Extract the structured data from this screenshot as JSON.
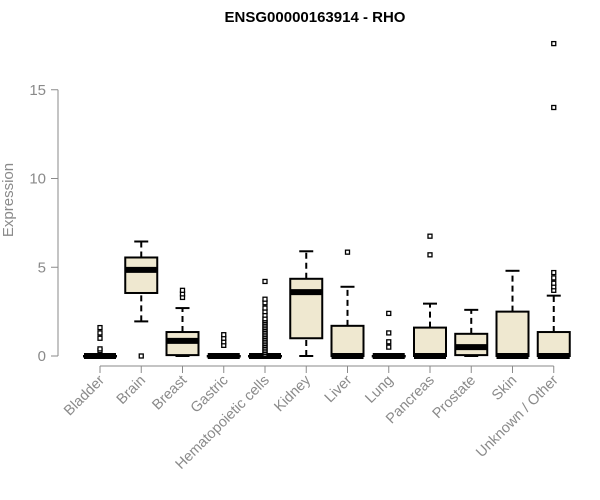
{
  "chart_data": {
    "type": "boxplot",
    "title": "ENSG00000163914 - RHO",
    "xlabel": "",
    "ylabel": "Expression",
    "ylim": [
      -0.5,
      17.8
    ],
    "yticks": [
      0,
      5,
      10,
      15
    ],
    "box_fill": "#efe8d0",
    "grid": false,
    "categories": [
      "Bladder",
      "Brain",
      "Breast",
      "Gastric",
      "Hematopoietic cells",
      "Kidney",
      "Liver",
      "Lung",
      "Pancreas",
      "Prostate",
      "Skin",
      "Unknown / Other"
    ],
    "boxes": [
      {
        "category": "Bladder",
        "min": 0,
        "q1": 0,
        "median": 0,
        "q3": 0,
        "max": 0,
        "outliers": [
          0.3,
          0.4,
          1.0,
          1.3,
          1.6
        ]
      },
      {
        "category": "Brain",
        "min": 1.95,
        "q1": 3.55,
        "median": 4.85,
        "q3": 5.55,
        "max": 6.45,
        "outliers": [
          0
        ]
      },
      {
        "category": "Breast",
        "min": 0,
        "q1": 0.05,
        "median": 0.85,
        "q3": 1.35,
        "max": 2.7,
        "outliers": [
          3.3,
          3.5,
          3.7
        ]
      },
      {
        "category": "Gastric",
        "min": 0,
        "q1": 0,
        "median": 0,
        "q3": 0,
        "max": 0,
        "outliers": [
          0.6,
          0.8,
          1.0,
          1.2
        ]
      },
      {
        "category": "Hematopoietic cells",
        "min": 0,
        "q1": 0,
        "median": 0,
        "q3": 0,
        "max": 0,
        "outliers": [
          0.1,
          0.2,
          0.3,
          0.4,
          0.5,
          0.6,
          0.7,
          0.8,
          0.9,
          1.0,
          1.1,
          1.2,
          1.3,
          1.4,
          1.5,
          1.6,
          1.7,
          1.8,
          1.9,
          2.0,
          2.1,
          2.3,
          2.5,
          2.7,
          3.0,
          3.2,
          4.2
        ]
      },
      {
        "category": "Kidney",
        "min": 0,
        "q1": 1.0,
        "median": 3.6,
        "q3": 4.35,
        "max": 5.9,
        "outliers": []
      },
      {
        "category": "Liver",
        "min": 0,
        "q1": 0,
        "median": 0,
        "q3": 1.7,
        "max": 3.9,
        "outliers": [
          5.85
        ]
      },
      {
        "category": "Lung",
        "min": 0,
        "q1": 0,
        "median": 0,
        "q3": 0,
        "max": 0,
        "outliers": [
          0.5,
          0.8,
          1.3,
          2.4
        ]
      },
      {
        "category": "Pancreas",
        "min": 0,
        "q1": 0,
        "median": 0,
        "q3": 1.6,
        "max": 2.95,
        "outliers": [
          5.7,
          6.75
        ]
      },
      {
        "category": "Prostate",
        "min": 0,
        "q1": 0.05,
        "median": 0.5,
        "q3": 1.25,
        "max": 2.6,
        "outliers": []
      },
      {
        "category": "Skin",
        "min": 0,
        "q1": 0,
        "median": 0,
        "q3": 2.5,
        "max": 4.8,
        "outliers": []
      },
      {
        "category": "Unknown / Other",
        "min": 0,
        "q1": 0,
        "median": 0,
        "q3": 1.35,
        "max": 3.4,
        "outliers": [
          3.7,
          3.9,
          4.1,
          4.4,
          4.7,
          14.0,
          17.6
        ]
      }
    ]
  }
}
